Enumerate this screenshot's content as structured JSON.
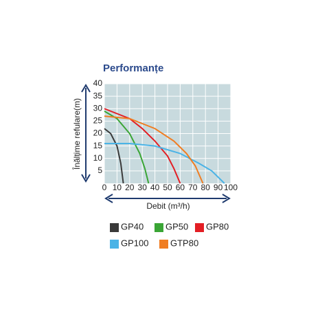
{
  "chart_data": {
    "type": "line",
    "title": "Performanțe",
    "x_label": "Debit (m³/h)",
    "y_label": "Înălțime refulare(m)",
    "xlim": [
      0,
      100
    ],
    "ylim": [
      0,
      40
    ],
    "xticks": [
      0,
      10,
      20,
      30,
      40,
      50,
      60,
      70,
      80,
      90,
      100
    ],
    "yticks": [
      5,
      10,
      15,
      20,
      25,
      30,
      35,
      40
    ],
    "grid": true,
    "background": "#c8dade",
    "series": [
      {
        "name": "GP40",
        "color": "#3a3a3a",
        "x": [
          0,
          5,
          10,
          13,
          15
        ],
        "values": [
          22,
          20,
          15,
          8,
          0
        ]
      },
      {
        "name": "GP50",
        "color": "#3aa535",
        "x": [
          0,
          10,
          20,
          28,
          32,
          35
        ],
        "values": [
          29,
          26,
          20,
          12,
          6,
          0
        ]
      },
      {
        "name": "GP80",
        "color": "#e31e24",
        "x": [
          0,
          10,
          20,
          30,
          40,
          50,
          55,
          60
        ],
        "values": [
          30,
          28,
          26,
          22,
          17,
          11,
          6,
          0
        ]
      },
      {
        "name": "GP100",
        "color": "#4ab3e6",
        "x": [
          0,
          20,
          40,
          60,
          75,
          85,
          95
        ],
        "values": [
          16,
          16,
          15,
          12,
          8,
          5,
          0
        ]
      },
      {
        "name": "GTP80",
        "color": "#f07d22",
        "x": [
          0,
          20,
          40,
          55,
          65,
          72,
          78
        ],
        "values": [
          27,
          26,
          22,
          17,
          12,
          7,
          0
        ]
      }
    ]
  }
}
